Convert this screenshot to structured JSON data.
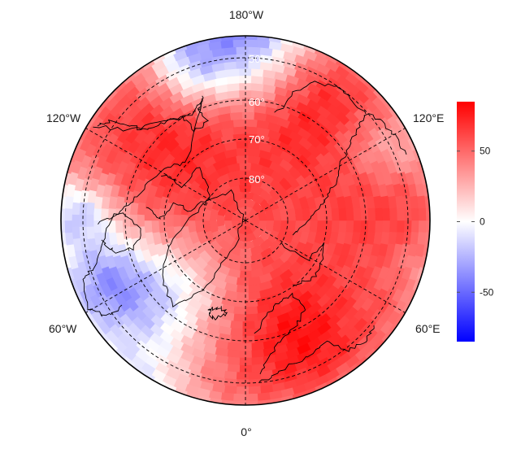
{
  "map": {
    "projection": "north-polar-stereographic",
    "center": "north-pole",
    "bottom_meridian": "0°",
    "lon_labels": {
      "top": "180°W",
      "upper_left": "120°W",
      "upper_right": "120°E",
      "lower_left": "60°W",
      "lower_right": "60°E",
      "bottom": "0°"
    },
    "lat_labels": [
      "50°",
      "60°",
      "70°",
      "80°"
    ],
    "graticule_style": "dashed",
    "field_description": "gridded anomaly field, mostly positive (red) with negative (blue) values near the 180° edge and along the 60°W–90°W margin"
  },
  "colorbar": {
    "ticks": [
      "50",
      "0",
      "-50"
    ],
    "tick_values": [
      50,
      0,
      -50
    ],
    "range": [
      -85,
      85
    ],
    "colors": {
      "high": "#ff0000",
      "mid": "#ffffff",
      "low": "#0000ff"
    }
  }
}
